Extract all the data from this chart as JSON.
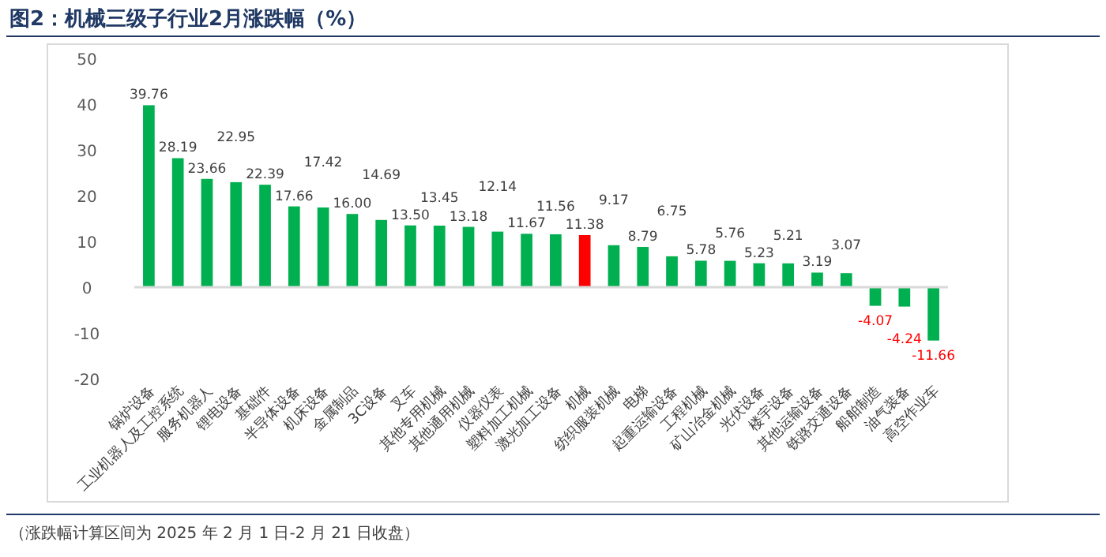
{
  "chart_data": {
    "type": "bar",
    "title": "图2：机械三级子行业2月涨跌幅（%）",
    "categories": [
      "锅炉设备",
      "工业机器人及工控系统",
      "服务机器人",
      "锂电设备",
      "基础件",
      "半导体设备",
      "机床设备",
      "金属制品",
      "3C设备",
      "叉车",
      "其他专用机械",
      "其他通用机械",
      "仪器仪表",
      "塑料加工机械",
      "激光加工设备",
      "机械",
      "纺织服装机械",
      "电梯",
      "起重运输设备",
      "工程机械",
      "矿山冶金机械",
      "光伏设备",
      "楼宇设备",
      "其他运输设备",
      "铁路交通设备",
      "船舶制造",
      "油气装备",
      "高空作业车"
    ],
    "values": [
      39.76,
      28.19,
      23.66,
      22.95,
      22.39,
      17.66,
      17.42,
      16.0,
      14.69,
      13.5,
      13.45,
      13.18,
      12.14,
      11.67,
      11.56,
      11.38,
      9.17,
      8.79,
      6.75,
      5.78,
      5.76,
      5.23,
      5.21,
      3.19,
      3.07,
      -4.07,
      -4.24,
      -11.66
    ],
    "value_labels": [
      "39.76",
      "28.19",
      "23.66",
      "22.95",
      "22.39",
      "17.66",
      "17.42",
      "16.00",
      "14.69",
      "13.50",
      "13.45",
      "13.18",
      "12.14",
      "11.67",
      "11.56",
      "11.38",
      "9.17",
      "8.79",
      "6.75",
      "5.78",
      "5.76",
      "5.23",
      "5.21",
      "3.19",
      "3.07",
      "-4.07",
      "-4.24",
      "-11.66"
    ],
    "colors": [
      "#00b050",
      "#00b050",
      "#00b050",
      "#00b050",
      "#00b050",
      "#00b050",
      "#00b050",
      "#00b050",
      "#00b050",
      "#00b050",
      "#00b050",
      "#00b050",
      "#00b050",
      "#00b050",
      "#00b050",
      "#ff0000",
      "#00b050",
      "#00b050",
      "#00b050",
      "#00b050",
      "#00b050",
      "#00b050",
      "#00b050",
      "#00b050",
      "#00b050",
      "#00b050",
      "#00b050",
      "#00b050"
    ],
    "ylim": [
      -20,
      50
    ],
    "yticks": [
      -20,
      -10,
      0,
      10,
      20,
      30,
      40,
      50
    ],
    "legend": false,
    "annotations": [
      "（涨跌幅计算区间为 2025 年 2 月 1 日-2 月 21 日收盘）"
    ]
  }
}
